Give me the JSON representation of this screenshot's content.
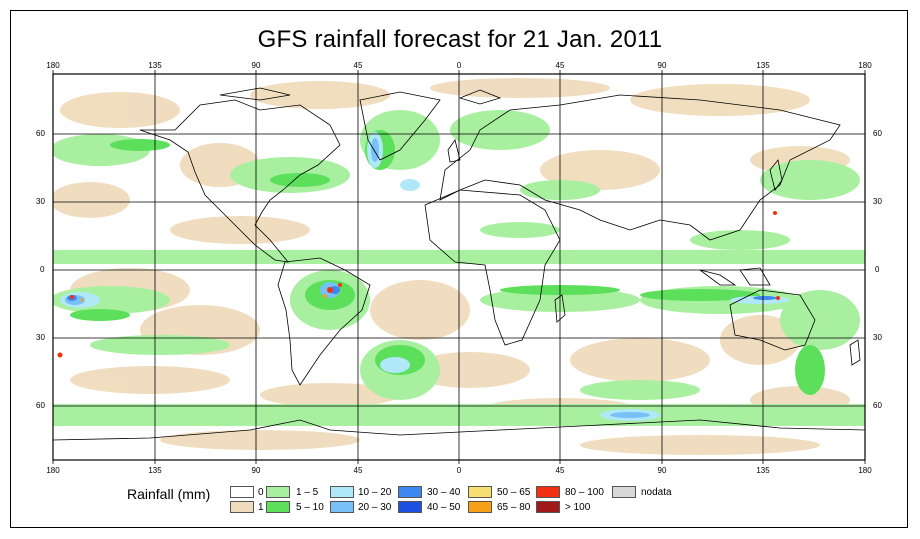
{
  "title": "GFS rainfall forecast for 21 Jan. 2011",
  "lon_ticks": [
    "180",
    "135",
    "90",
    "45",
    "0",
    "45",
    "90",
    "135",
    "180"
  ],
  "lat_ticks": [
    "60",
    "30",
    "0",
    "30",
    "60"
  ],
  "legend": {
    "title": "Rainfall (mm)",
    "items": [
      {
        "label": "0",
        "color": "#ffffff"
      },
      {
        "label": "1",
        "color": "#f0dcbc"
      },
      {
        "label": "1 – 5",
        "color": "#a8f0a0"
      },
      {
        "label": "5 – 10",
        "color": "#5ce05c"
      },
      {
        "label": "10 – 20",
        "color": "#b0e8f8"
      },
      {
        "label": "20 – 30",
        "color": "#78c0f8"
      },
      {
        "label": "30 – 40",
        "color": "#3c88f0"
      },
      {
        "label": "40 – 50",
        "color": "#1c50e0"
      },
      {
        "label": "50 – 65",
        "color": "#f8e070"
      },
      {
        "label": "65 – 80",
        "color": "#f8a018"
      },
      {
        "label": "80 – 100",
        "color": "#f03010"
      },
      {
        "label": "> 100",
        "color": "#a01818"
      },
      {
        "label": "nodata",
        "color": "#d8d8d8"
      }
    ]
  }
}
